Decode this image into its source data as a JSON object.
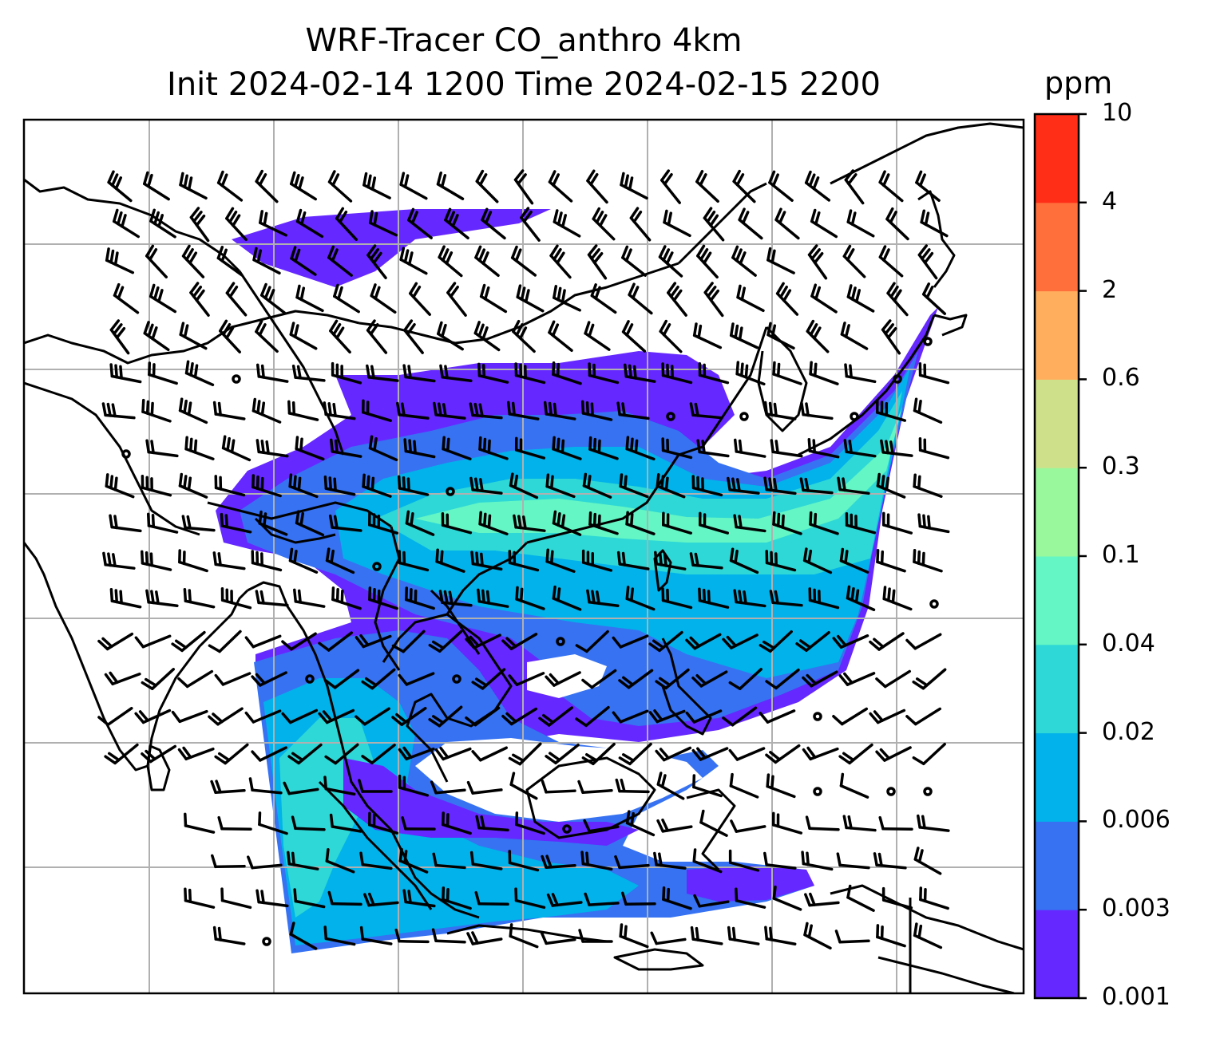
{
  "title": {
    "line1": "WRF-Tracer CO_anthro 4km",
    "line2": "Init 2024-02-14 1200 Time 2024-02-15 2200"
  },
  "colorbar": {
    "units": "ppm",
    "ticks": [
      "0.001",
      "0.003",
      "0.006",
      "0.02",
      "0.04",
      "0.1",
      "0.3",
      "0.6",
      "2",
      "4",
      "10"
    ],
    "colors": [
      "#6528ff",
      "#3672f2",
      "#02b2ea",
      "#2ed8d6",
      "#64f6c4",
      "#9af89c",
      "#cfe08a",
      "#ffae5e",
      "#ff6f3c",
      "#ff2e17"
    ]
  },
  "map_style": {
    "gridline_color": "#b0b0b0",
    "coastline_color": "#000000",
    "wind_barb_color": "#000000"
  }
}
